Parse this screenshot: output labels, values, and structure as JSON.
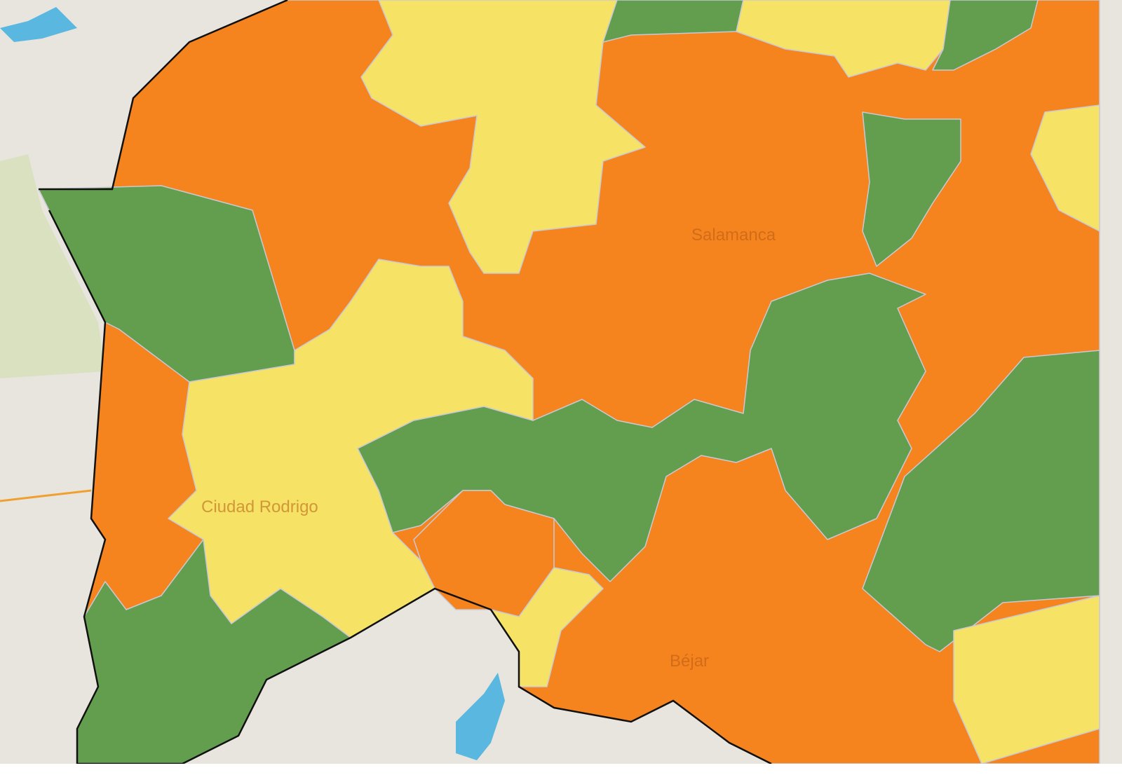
{
  "map": {
    "labels": {
      "salamanca": "Salamanca",
      "ciudad_rodrigo": "Ciudad Rodrigo",
      "bejar": "Béjar"
    },
    "colors": {
      "background": "#e8e5de",
      "high": "#f5841f",
      "medium": "#f6e264",
      "low": "#629e4e",
      "water": "#5ab8e0",
      "province_border": "#111111",
      "municipal_border": "#c9c9d6"
    }
  }
}
